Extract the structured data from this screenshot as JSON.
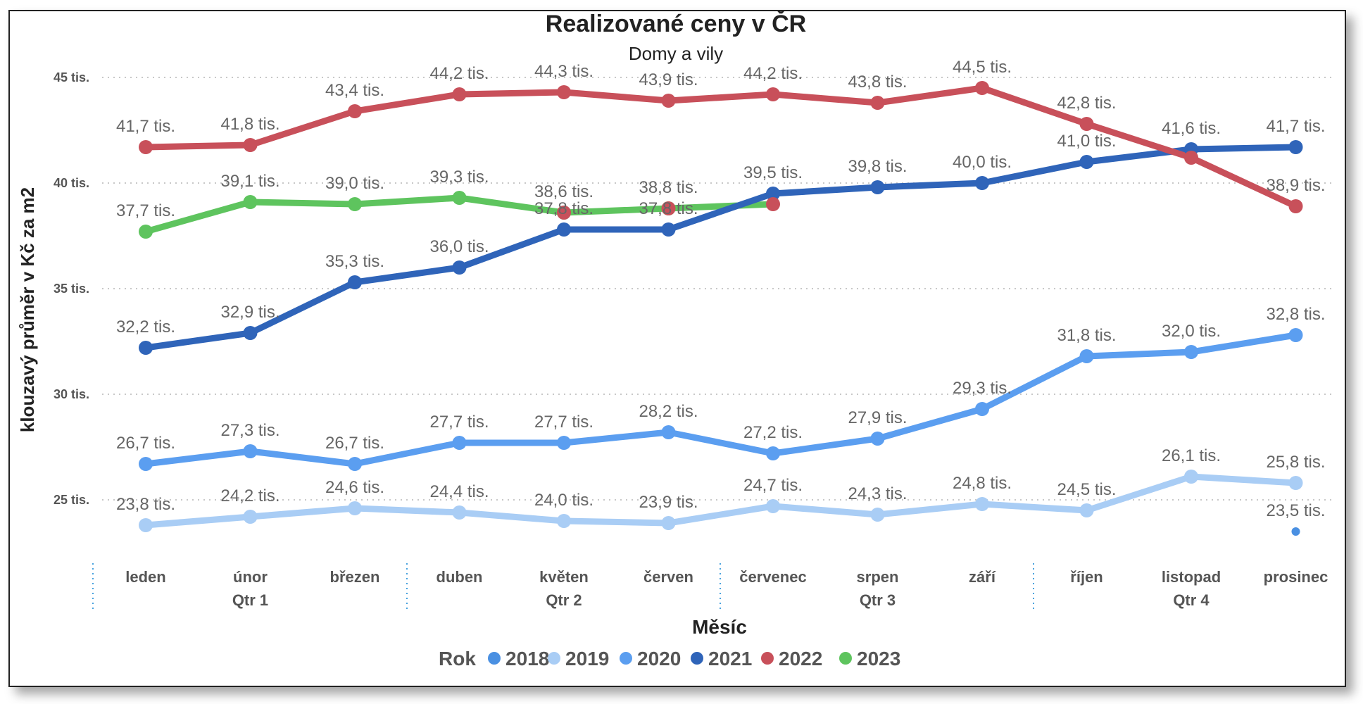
{
  "chart_data": {
    "type": "line",
    "title": "Realizované ceny v ČR",
    "subtitle": "Domy a vily",
    "xlabel": "Měsíc",
    "ylabel": "klouzavý průměr v Kč za m2",
    "ylim": [
      20.8,
      47.2
    ],
    "yticks": [
      25,
      30,
      35,
      40,
      45
    ],
    "ytick_labels": [
      "25 tis.",
      "30 tis.",
      "35 tis.",
      "40 tis.",
      "45 tis."
    ],
    "grid": true,
    "categories": [
      "leden",
      "únor",
      "březen",
      "duben",
      "květen",
      "červen",
      "červenec",
      "srpen",
      "září",
      "říjen",
      "listopad",
      "prosinec"
    ],
    "groups": [
      {
        "label": "Qtr 1",
        "from": 0,
        "to": 2
      },
      {
        "label": "Qtr 2",
        "from": 3,
        "to": 5
      },
      {
        "label": "Qtr 3",
        "from": 6,
        "to": 8
      },
      {
        "label": "Qtr 4",
        "from": 9,
        "to": 11
      }
    ],
    "legend": {
      "title": "Rok",
      "placement": "bottom"
    },
    "series": [
      {
        "name": "2018",
        "color": "#4a90e2",
        "values": [
          null,
          null,
          null,
          null,
          null,
          null,
          null,
          null,
          null,
          null,
          null,
          23.5
        ],
        "labels": [
          null,
          null,
          null,
          null,
          null,
          null,
          null,
          null,
          null,
          null,
          null,
          "23,5 tis."
        ]
      },
      {
        "name": "2019",
        "color": "#a9cdf5",
        "values": [
          23.8,
          24.2,
          24.6,
          24.4,
          24.0,
          23.9,
          24.7,
          24.3,
          24.8,
          24.5,
          26.1,
          25.8
        ],
        "labels": [
          "23,8 tis.",
          "24,2 tis.",
          "24,6 tis.",
          "24,4 tis.",
          "24,0 tis.",
          "23,9 tis.",
          "24,7 tis.",
          "24,3 tis.",
          "24,8 tis.",
          "24,5 tis.",
          "26,1 tis.",
          "25,8 tis."
        ]
      },
      {
        "name": "2020",
        "color": "#5b9ef0",
        "values": [
          26.7,
          27.3,
          26.7,
          27.7,
          27.7,
          28.2,
          27.2,
          27.9,
          29.3,
          31.8,
          32.0,
          32.8
        ],
        "labels": [
          "26,7 tis.",
          "27,3 tis.",
          "26,7 tis.",
          "27,7 tis.",
          "27,7 tis.",
          "28,2 tis.",
          "27,2 tis.",
          "27,9 tis.",
          "29,3 tis.",
          "31,8 tis.",
          "32,0 tis.",
          "32,8 tis."
        ]
      },
      {
        "name": "2021",
        "color": "#2f64b9",
        "values": [
          32.2,
          32.9,
          35.3,
          36.0,
          37.8,
          37.8,
          39.5,
          39.8,
          40.0,
          41.0,
          41.6,
          41.7
        ],
        "labels": [
          "32,2 tis.",
          "32,9 tis.",
          "35,3 tis.",
          "36,0 tis.",
          "37,8 tis.",
          "37,8 tis.",
          "39,5 tis.",
          "39,8 tis.",
          "40,0 tis.",
          "41,0 tis.",
          "41,6 tis.",
          "41,7 tis."
        ]
      },
      {
        "name": "2022",
        "color": "#c8505a",
        "values": [
          41.7,
          41.8,
          43.4,
          44.2,
          44.3,
          43.9,
          44.2,
          43.8,
          44.5,
          42.8,
          41.2,
          38.9
        ],
        "labels": [
          "41,7 tis.",
          "41,8 tis.",
          "43,4 tis.",
          "44,2 tis.",
          "44,3 tis.",
          "43,9 tis.",
          "44,2 tis.",
          "43,8 tis.",
          "44,5 tis.",
          "42,8 tis.",
          null,
          "38,9 tis."
        ]
      },
      {
        "name": "2023",
        "color": "#5ec45e",
        "values": [
          37.7,
          39.1,
          39.0,
          39.3,
          38.6,
          38.8,
          null,
          null,
          null,
          null,
          null,
          null
        ],
        "labels": [
          "37,7 tis.",
          "39,1 tis.",
          "39,0 tis.",
          "39,3 tis.",
          "38,6 tis.",
          "38,8 tis.",
          null,
          null,
          null,
          null,
          null,
          null
        ]
      }
    ],
    "extra_points": [
      {
        "series": "2022",
        "index": 4,
        "value": 38.6
      },
      {
        "series": "2022",
        "index": 5,
        "value": 38.8
      },
      {
        "series": "2022",
        "index": 6,
        "value": 39.0
      },
      {
        "series": "2023",
        "index": 6,
        "value": 39.0
      }
    ]
  }
}
